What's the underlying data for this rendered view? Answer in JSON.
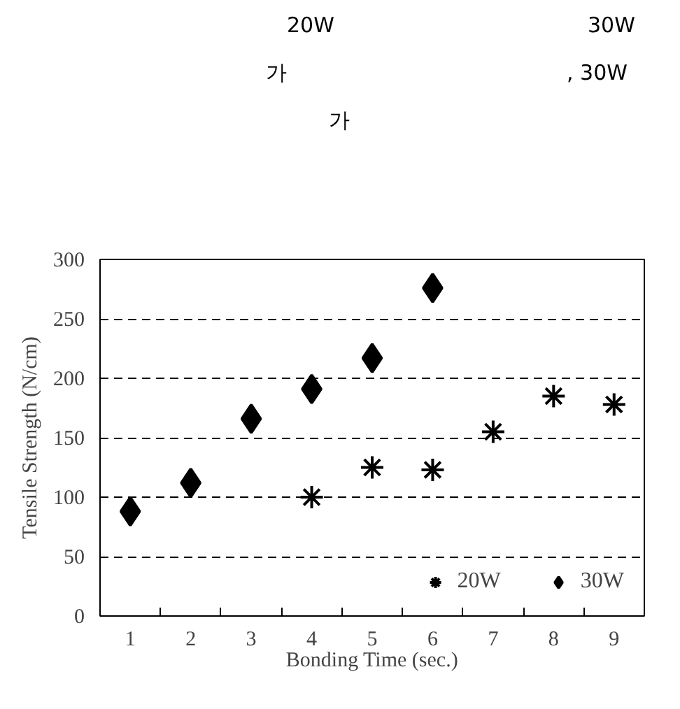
{
  "chart_data": {
    "type": "scatter",
    "annotations": [
      "20W",
      "30W",
      "가",
      ", 30W",
      "가"
    ],
    "xlabel": "Bonding Time (sec.)",
    "ylabel": "Tensile Strength (N/cm)",
    "categories": [
      "1",
      "2",
      "3",
      "4",
      "5",
      "6",
      "7",
      "8",
      "9"
    ],
    "series": [
      {
        "name": "20W",
        "color": "#000000",
        "marker": "cross",
        "x": [
          "4",
          "5",
          "6",
          "7",
          "8",
          "9"
        ],
        "values": [
          100,
          125,
          123,
          155,
          185,
          178
        ]
      },
      {
        "name": "30W",
        "color": "#000000",
        "marker": "diamond",
        "x": [
          "1",
          "2",
          "3",
          "4",
          "5",
          "6"
        ],
        "values": [
          88,
          112,
          166,
          191,
          217,
          276
        ]
      }
    ],
    "ylim": [
      0,
      300
    ],
    "yticks": [
      0,
      50,
      100,
      150,
      200,
      250,
      300
    ],
    "grid": "y",
    "legend": "bottom right"
  }
}
